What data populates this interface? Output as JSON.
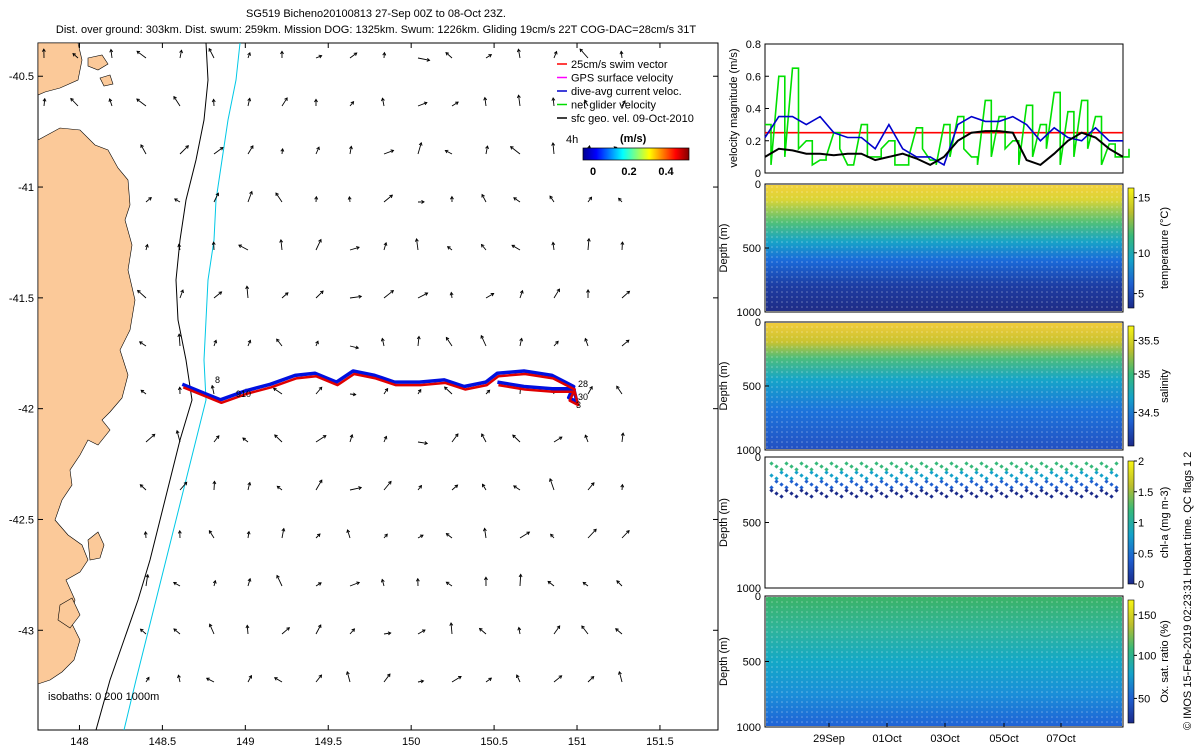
{
  "title_line1": "SG519 Bicheno20100813 27-Sep 00Z to 08-Oct 23Z.",
  "title_line2": "Dist. over ground: 303km. Dist. swum: 259km. Mission DOG: 1325km. Swum: 1226km. Gliding 19cm/s 22T COG-DAC=28cm/s 31T",
  "side_note": "© IMOS 15-Feb-2019 02:23:31 Hobart time. QC flags 1  2",
  "colors": {
    "land": "#fbc999",
    "isobath_200": "#000000",
    "isobath_1000": "#00c8e6",
    "track_red": "#e00000",
    "track_blue": "#0010e0",
    "vel_red": "#ff0000",
    "vel_blue": "#0000cc",
    "vel_green": "#00e000",
    "vel_black": "#000000"
  },
  "chart_data": [
    {
      "type": "map",
      "xlim": [
        147.75,
        151.85
      ],
      "ylim": [
        -43.45,
        -40.35
      ],
      "xticks": [
        "148",
        "148.5",
        "149",
        "149.5",
        "150",
        "150.5",
        "151",
        "151.5"
      ],
      "yticks": [
        "-40.5",
        "-41",
        "-41.5",
        "-42",
        "-42.5",
        "-43"
      ],
      "legend": [
        {
          "label": "25cm/s swim vector",
          "color": "#ff0000"
        },
        {
          "label": "GPS surface velocity",
          "color": "#ff00ff"
        },
        {
          "label": "dive-avg current veloc.",
          "color": "#0000cc"
        },
        {
          "label": "net glider velocity",
          "color": "#00dd00"
        },
        {
          "label": "sfc geo. vel. 09-Oct-2010",
          "color": "#000000"
        }
      ],
      "colorbar": {
        "label": "(m/s)",
        "ticks": [
          "0",
          "0.2",
          "0.4"
        ],
        "prefix": "4h"
      },
      "isobath_label": "isobaths: 0   200  1000m",
      "track_labels": [
        "8",
        "910",
        "28",
        "30",
        "3"
      ],
      "track_lonlat": [
        [
          148.62,
          -41.89
        ],
        [
          148.75,
          -41.93
        ],
        [
          148.85,
          -41.96
        ],
        [
          149.0,
          -41.92
        ],
        [
          149.15,
          -41.89
        ],
        [
          149.3,
          -41.85
        ],
        [
          149.42,
          -41.84
        ],
        [
          149.55,
          -41.88
        ],
        [
          149.65,
          -41.83
        ],
        [
          149.78,
          -41.85
        ],
        [
          149.9,
          -41.88
        ],
        [
          150.05,
          -41.88
        ],
        [
          150.2,
          -41.87
        ],
        [
          150.32,
          -41.9
        ],
        [
          150.45,
          -41.88
        ],
        [
          150.52,
          -41.84
        ],
        [
          150.68,
          -41.83
        ],
        [
          150.85,
          -41.85
        ],
        [
          150.98,
          -41.9
        ],
        [
          150.95,
          -41.95
        ],
        [
          151.0,
          -41.97
        ],
        [
          150.98,
          -41.91
        ],
        [
          150.85,
          -41.91
        ],
        [
          150.68,
          -41.9
        ],
        [
          150.52,
          -41.88
        ]
      ]
    },
    {
      "type": "line",
      "ylabel": "velocity magnitude (m/s)",
      "ylim": [
        0,
        0.8
      ],
      "yticks": [
        "0",
        "0.2",
        "0.4",
        "0.6",
        "0.8"
      ],
      "series": [
        {
          "name": "swim",
          "color": "#ff0000",
          "values": [
            0.25,
            0.25
          ]
        },
        {
          "name": "net glider velocity",
          "color": "#00e000",
          "values": [
            0.3,
            0.6,
            0.65,
            0.2,
            0.08,
            0.25,
            0.05,
            0.3,
            0.1,
            0.2,
            0.05,
            0.28,
            0.08,
            0.3,
            0.35,
            0.1,
            0.45,
            0.35,
            0.2,
            0.42,
            0.3,
            0.5,
            0.38,
            0.45,
            0.35,
            0.18,
            0.1
          ]
        },
        {
          "name": "dive-avg current",
          "color": "#0000cc",
          "values": [
            0.22,
            0.35,
            0.35,
            0.3,
            0.35,
            0.25,
            0.22,
            0.22,
            0.15,
            0.3,
            0.15,
            0.1,
            0.1,
            0.05,
            0.3,
            0.35,
            0.32,
            0.32,
            0.35,
            0.3,
            0.2,
            0.28,
            0.22,
            0.2,
            0.28,
            0.2,
            0.2
          ]
        },
        {
          "name": "sfc geo. vel.",
          "color": "#000000",
          "values": [
            0.1,
            0.15,
            0.14,
            0.12,
            0.12,
            0.11,
            0.12,
            0.12,
            0.08,
            0.1,
            0.12,
            0.09,
            0.05,
            0.1,
            0.2,
            0.25,
            0.26,
            0.26,
            0.25,
            0.08,
            0.05,
            0.12,
            0.2,
            0.25,
            0.22,
            0.15,
            0.1
          ]
        }
      ]
    },
    {
      "type": "heatmap",
      "ylabel": "Depth (m)",
      "cbar_label": "temperature (°C)",
      "cbar_ticks": [
        "15",
        "10",
        "5"
      ],
      "yticks": [
        "0",
        "500",
        "1000"
      ]
    },
    {
      "type": "heatmap",
      "ylabel": "Depth (m)",
      "cbar_label": "salinity",
      "cbar_ticks": [
        "35.5",
        "35",
        "34.5"
      ],
      "yticks": [
        "0",
        "500",
        "1000"
      ]
    },
    {
      "type": "scatter",
      "ylabel": "Depth (m)",
      "cbar_label": "chl-a (mg m-3)",
      "cbar_ticks": [
        "2",
        "1.5",
        "1",
        "0.5",
        "0"
      ],
      "yticks": [
        "0",
        "500",
        "1000"
      ]
    },
    {
      "type": "heatmap",
      "ylabel": "Depth (m)",
      "cbar_label": "Ox. sat. ratio (%)",
      "cbar_ticks": [
        "150",
        "100",
        "50"
      ],
      "yticks": [
        "0",
        "500",
        "1000"
      ],
      "xticks": [
        "29Sep",
        "01Oct",
        "03Oct",
        "05Oct",
        "07Oct"
      ]
    }
  ]
}
